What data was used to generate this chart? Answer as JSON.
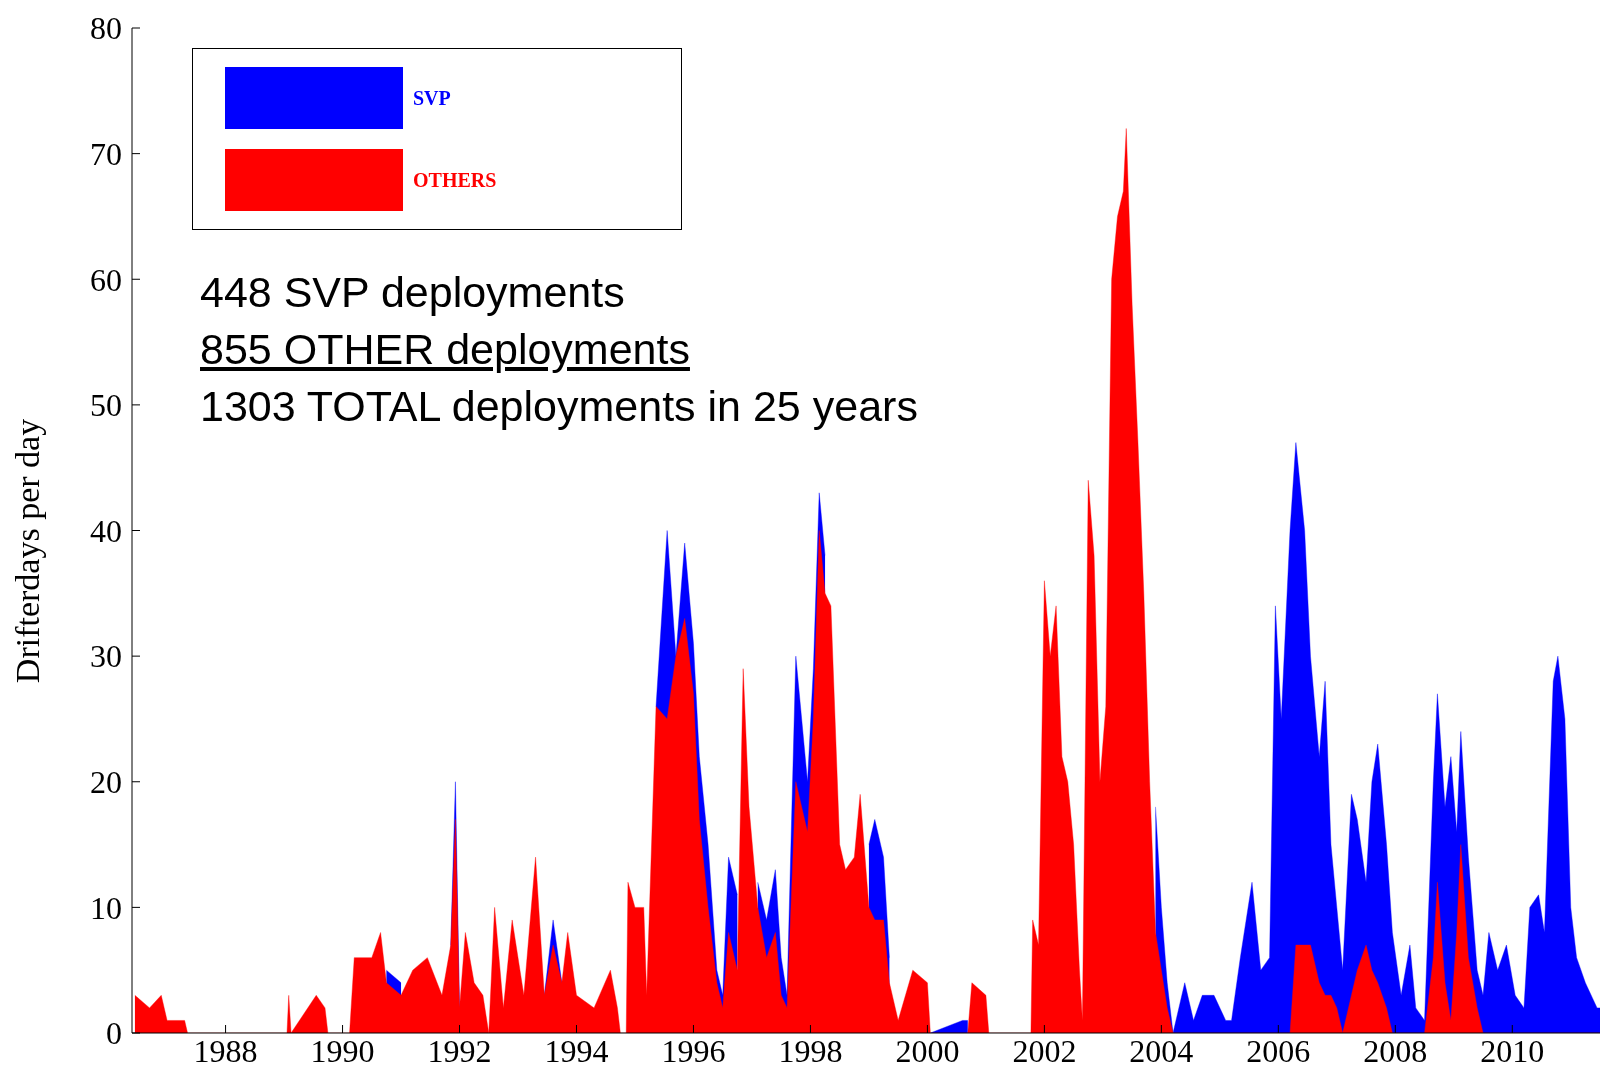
{
  "chart_data": {
    "type": "area",
    "ylabel": "Drifterdays per day",
    "x": [
      1986.45,
      1986.7,
      1986.9,
      1987.0,
      1987.3,
      1987.35,
      1989.05,
      1989.08,
      1989.12,
      1989.55,
      1989.7,
      1989.75,
      1990.12,
      1990.2,
      1990.5,
      1990.65,
      1990.75,
      1991.0,
      1991.2,
      1991.45,
      1991.7,
      1991.85,
      1991.93,
      1992.0,
      1992.1,
      1992.25,
      1992.4,
      1992.5,
      1992.6,
      1992.75,
      1992.9,
      1993.1,
      1993.3,
      1993.45,
      1993.6,
      1993.75,
      1993.85,
      1994.0,
      1994.3,
      1994.58,
      1994.7,
      1994.75,
      1994.85,
      1994.88,
      1995.0,
      1995.15,
      1995.2,
      1995.36,
      1995.55,
      1995.7,
      1995.85,
      1996.0,
      1996.1,
      1996.25,
      1996.4,
      1996.5,
      1996.6,
      1996.75,
      1996.85,
      1996.95,
      1997.1,
      1997.25,
      1997.4,
      1997.5,
      1997.6,
      1997.75,
      1997.85,
      1997.95,
      1998.05,
      1998.15,
      1998.25,
      1998.35,
      1998.5,
      1998.6,
      1998.75,
      1998.85,
      1999.0,
      1999.1,
      1999.25,
      1999.35,
      1999.5,
      1999.75,
      2000.0,
      2000.05,
      2000.6,
      2000.69,
      2000.76,
      2001.0,
      2001.05,
      2001.77,
      2001.8,
      2001.9,
      2002.0,
      2002.1,
      2002.2,
      2002.3,
      2002.4,
      2002.5,
      2002.6,
      2002.65,
      2002.75,
      2002.85,
      2002.95,
      2003.05,
      2003.15,
      2003.25,
      2003.35,
      2003.4,
      2003.5,
      2003.6,
      2003.7,
      2003.8,
      2003.9,
      2004.0,
      2004.1,
      2004.2,
      2004.4,
      2004.55,
      2004.7,
      2004.9,
      2005.1,
      2005.2,
      2005.35,
      2005.55,
      2005.7,
      2005.85,
      2005.95,
      2006.05,
      2006.2,
      2006.3,
      2006.45,
      2006.55,
      2006.7,
      2006.8,
      2006.9,
      2007.0,
      2007.1,
      2007.25,
      2007.35,
      2007.5,
      2007.6,
      2007.7,
      2007.85,
      2007.95,
      2008.1,
      2008.25,
      2008.35,
      2008.5,
      2008.65,
      2008.72,
      2008.85,
      2008.95,
      2009.05,
      2009.12,
      2009.25,
      2009.4,
      2009.5,
      2009.6,
      2009.75,
      2009.9,
      2010.05,
      2010.2,
      2010.3,
      2010.45,
      2010.55,
      2010.7,
      2010.78,
      2010.9,
      2011.0,
      2011.1,
      2011.25,
      2011.45,
      2011.5
    ],
    "series": [
      {
        "name": "SVP",
        "color": "#0000ff",
        "values": [
          null,
          null,
          null,
          null,
          null,
          null,
          null,
          null,
          null,
          null,
          null,
          null,
          null,
          null,
          null,
          null,
          5,
          4,
          null,
          null,
          null,
          7,
          20,
          2,
          null,
          null,
          null,
          null,
          null,
          null,
          null,
          null,
          null,
          3,
          9,
          4,
          null,
          null,
          null,
          null,
          null,
          null,
          null,
          null,
          null,
          null,
          null,
          26,
          40,
          30,
          39,
          31,
          22,
          15,
          5,
          3,
          14,
          11,
          null,
          null,
          12,
          9,
          13,
          6,
          3,
          30,
          25,
          20,
          29,
          43,
          38,
          null,
          null,
          null,
          null,
          null,
          15,
          17,
          14,
          6,
          null,
          null,
          null,
          0,
          1,
          1,
          null,
          null,
          null,
          null,
          null,
          null,
          null,
          null,
          null,
          null,
          null,
          null,
          null,
          null,
          null,
          null,
          null,
          null,
          null,
          null,
          null,
          null,
          null,
          null,
          null,
          null,
          18,
          10,
          4,
          0,
          4,
          1,
          3,
          3,
          1,
          1,
          6,
          12,
          5,
          6,
          34,
          25,
          40,
          47,
          40,
          30,
          22,
          28,
          15,
          10,
          5,
          19,
          17,
          12,
          20,
          23,
          15,
          8,
          3,
          7,
          2,
          1,
          20,
          27,
          18,
          22,
          16,
          24,
          14,
          5,
          3,
          8,
          5,
          7,
          3,
          2,
          10,
          11,
          8,
          28,
          30,
          25,
          10,
          6,
          4,
          2,
          2
        ]
      },
      {
        "name": "OTHERS",
        "color": "#ff0000",
        "values": [
          3,
          2,
          3,
          1,
          1,
          0,
          0,
          3,
          0,
          3,
          2,
          0,
          0,
          6,
          6,
          8,
          4,
          3,
          5,
          6,
          3,
          7,
          17,
          2,
          8,
          4,
          3,
          0,
          10,
          2,
          9,
          3,
          14,
          3,
          7,
          4,
          8,
          3,
          2,
          5,
          2,
          0,
          0,
          12,
          10,
          10,
          3,
          26,
          25,
          30,
          33,
          27,
          17,
          10,
          4,
          2,
          8,
          5,
          29,
          18,
          10,
          6,
          8,
          3,
          2,
          20,
          18,
          16,
          25,
          40,
          35,
          34,
          15,
          13,
          14,
          19,
          10,
          9,
          9,
          4,
          1,
          5,
          4,
          0,
          0,
          0,
          4,
          3,
          0,
          0,
          9,
          7,
          36,
          30,
          34,
          22,
          20,
          15,
          5,
          1,
          44,
          38,
          20,
          26,
          60,
          65,
          67,
          72,
          58,
          47,
          35,
          20,
          8,
          5,
          2,
          0,
          0,
          0,
          0,
          0,
          0,
          0,
          0,
          0,
          0,
          0,
          0,
          0,
          0,
          7,
          7,
          7,
          4,
          3,
          3,
          2,
          0,
          3,
          5,
          7,
          5,
          4,
          2,
          0,
          0,
          0,
          0,
          0,
          6,
          12,
          4,
          1,
          8,
          15,
          6,
          2,
          0,
          0,
          0,
          0,
          0,
          0,
          0,
          0,
          0,
          0,
          0,
          0,
          0,
          0,
          0,
          0,
          0
        ]
      }
    ],
    "xlim": [
      1986.4,
      2011.5
    ],
    "xticks": [
      1988,
      1990,
      1992,
      1994,
      1996,
      1998,
      2000,
      2002,
      2004,
      2006,
      2008,
      2010
    ],
    "ylim": [
      0,
      80
    ],
    "yticks": [
      0,
      10,
      20,
      30,
      40,
      50,
      60,
      70,
      80
    ],
    "legend": "top left",
    "annotations": [
      "448 SVP deployments",
      "855 OTHER deployments",
      "1303 TOTAL deployments in 25 years"
    ]
  }
}
